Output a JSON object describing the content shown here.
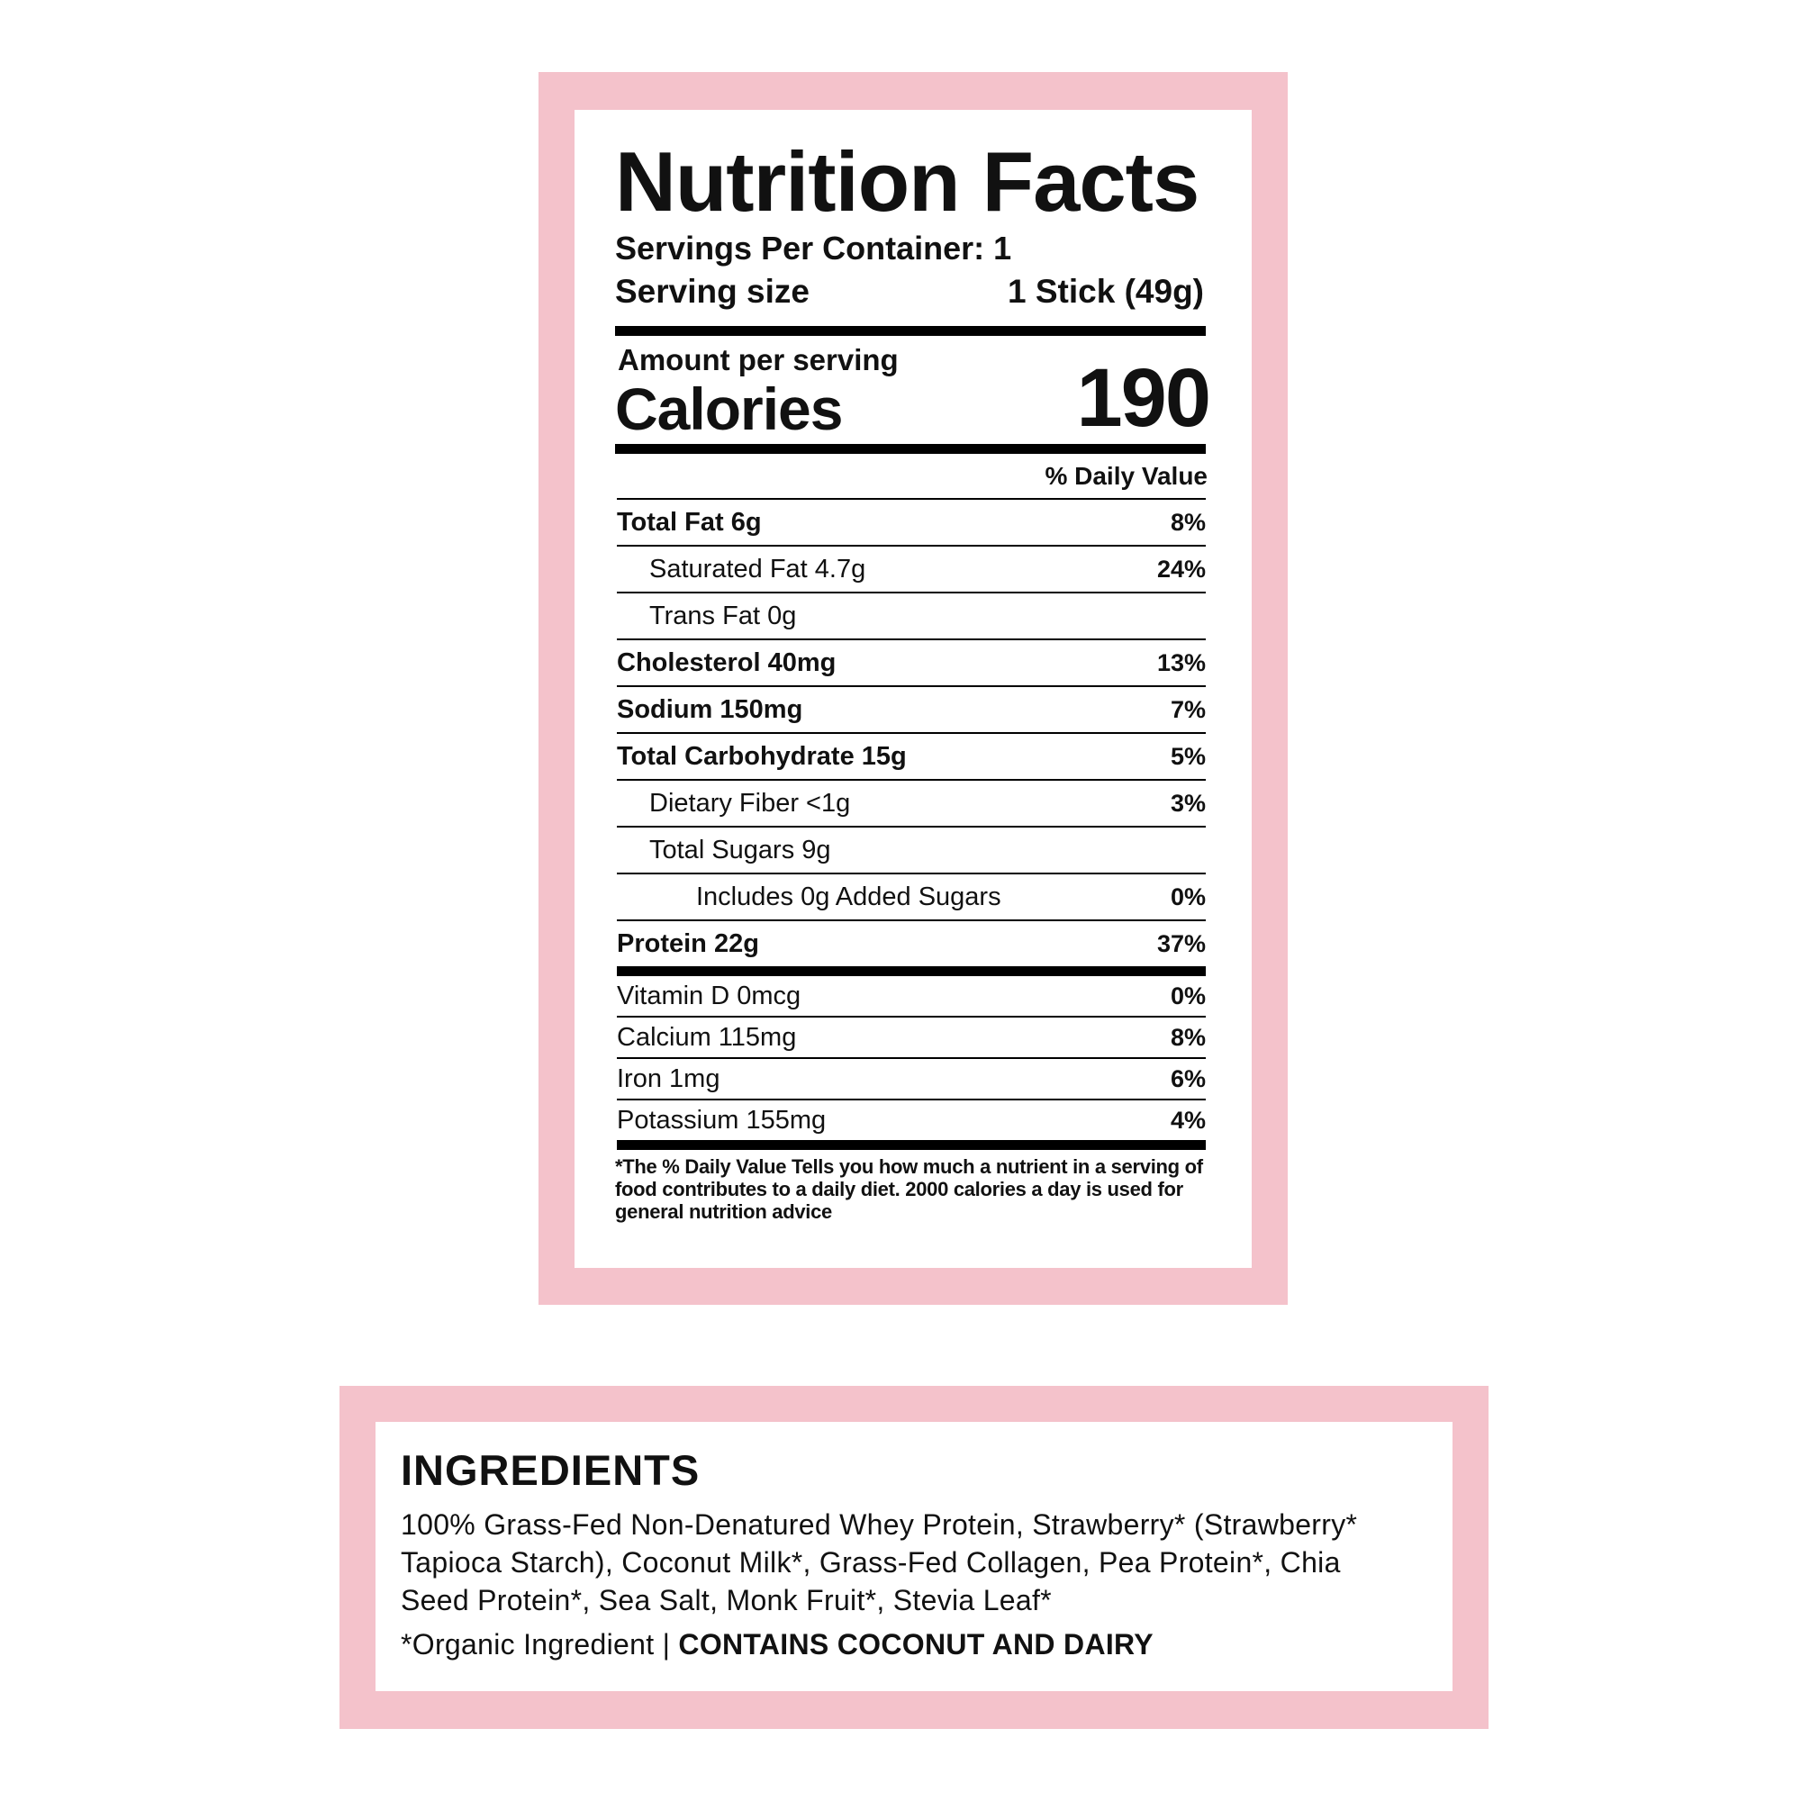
{
  "colors": {
    "frame": "#f4c2cb",
    "text": "#111111"
  },
  "nutrition": {
    "title": "Nutrition Facts",
    "servings_per_container": "Servings Per Container: 1",
    "serving_size_label": "Serving size",
    "serving_size_value": "1 Stick (49g)",
    "amount_per_serving": "Amount per serving",
    "calories_label": "Calories",
    "calories_value": "190",
    "daily_value_header": "% Daily Value",
    "rows": [
      {
        "name": "Total Fat",
        "amount": "6g",
        "pct": "8%"
      },
      {
        "name": "Saturated Fat 4.7g",
        "amount": "",
        "pct": "24%"
      },
      {
        "name": "Trans Fat 0g",
        "amount": "",
        "pct": ""
      },
      {
        "name": "Cholesterol",
        "amount": "40mg",
        "pct": "13%"
      },
      {
        "name": "Sodium",
        "amount": "150mg",
        "pct": "7%"
      },
      {
        "name": "Total Carbohydrate",
        "amount": "15g",
        "pct": "5%"
      },
      {
        "name": "Dietary Fiber <1g",
        "amount": "",
        "pct": "3%"
      },
      {
        "name": "Total Sugars 9g",
        "amount": "",
        "pct": ""
      },
      {
        "name": "Includes 0g Added Sugars",
        "amount": "",
        "pct": "0%"
      },
      {
        "name": "Protein",
        "amount": "22g",
        "pct": "37%"
      }
    ],
    "vitamins": [
      {
        "name": "Vitamin D 0mcg",
        "pct": "0%"
      },
      {
        "name": "Calcium 115mg",
        "pct": "8%"
      },
      {
        "name": "Iron 1mg",
        "pct": "6%"
      },
      {
        "name": "Potassium 155mg",
        "pct": "4%"
      }
    ],
    "footnote": "*The % Daily Value Tells you how much a nutrient in a serving of food contributes to a daily diet. 2000 calories a day is used for general nutrition advice"
  },
  "ingredients": {
    "title": "INGREDIENTS",
    "lines": [
      "100% Grass-Fed Non-Denatured Whey Protein, Strawberry* (Strawberry*",
      "Tapioca Starch), Coconut Milk*, Grass-Fed Collagen, Pea Protein*, Chia",
      "Seed Protein*, Sea Salt, Monk Fruit*, Stevia Leaf*"
    ],
    "note": "*Organic Ingredient | ",
    "allergens": "CONTAINS COCONUT AND DAIRY"
  }
}
